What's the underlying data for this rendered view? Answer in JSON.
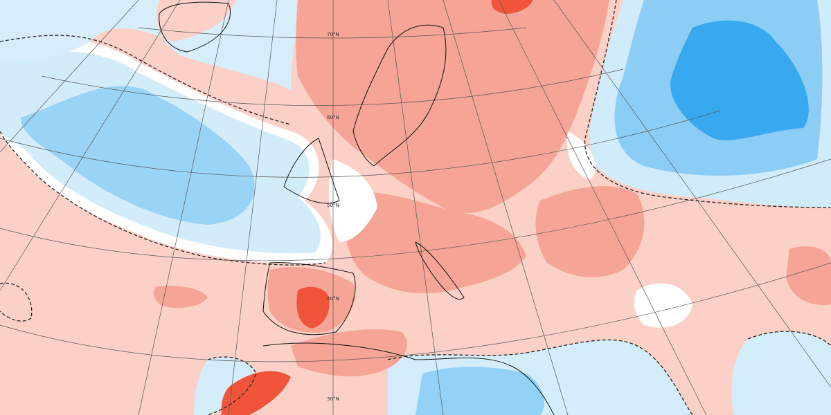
{
  "map": {
    "latitude_labels": [
      "70°N",
      "60°N",
      "50°N",
      "40°N",
      "30°N"
    ]
  }
}
